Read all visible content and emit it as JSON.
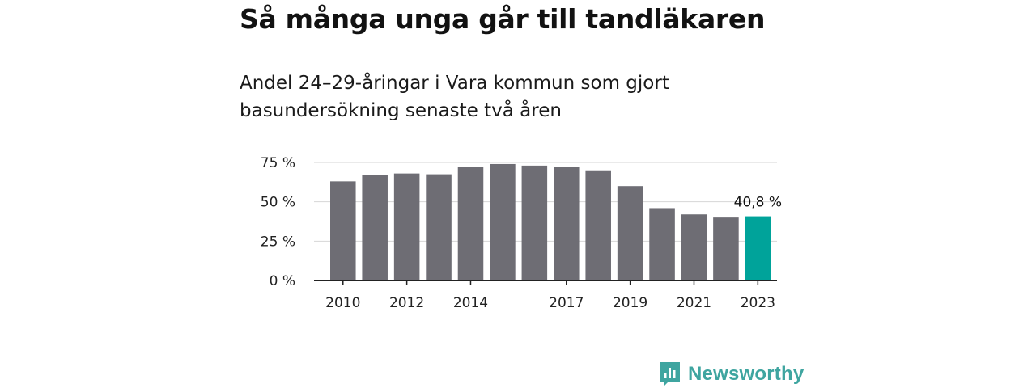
{
  "header": {
    "title": "Så många unga går till tandläkaren",
    "subtitle": "Andel 24–29-åringar i Vara kommun som gjort basundersökning senaste två åren"
  },
  "brand": {
    "name": "Newsworthy",
    "icon": "newsworthy-logo-icon",
    "color": "#3fa5a0"
  },
  "chart_data": {
    "type": "bar",
    "categories": [
      "2010",
      "2011",
      "2012",
      "2013",
      "2014",
      "2015",
      "2016",
      "2017",
      "2018",
      "2019",
      "2020",
      "2021",
      "2022",
      "2023"
    ],
    "values": [
      63,
      67,
      68,
      67.5,
      72,
      74,
      73,
      72,
      70,
      60,
      46,
      42,
      40,
      40.8
    ],
    "x_tick_labels": [
      "2010",
      "2012",
      "2014",
      "2017",
      "2019",
      "2021",
      "2023"
    ],
    "y_ticks": [
      0,
      25,
      50,
      75
    ],
    "y_tick_labels": [
      "0 %",
      "25 %",
      "50 %",
      "75 %"
    ],
    "ylim": [
      0,
      75
    ],
    "grid": true,
    "bar_color": "#6e6d74",
    "highlight_color": "#00a39a",
    "highlight_category": "2023",
    "annotation": {
      "category": "2023",
      "text": "40,8 %"
    }
  }
}
